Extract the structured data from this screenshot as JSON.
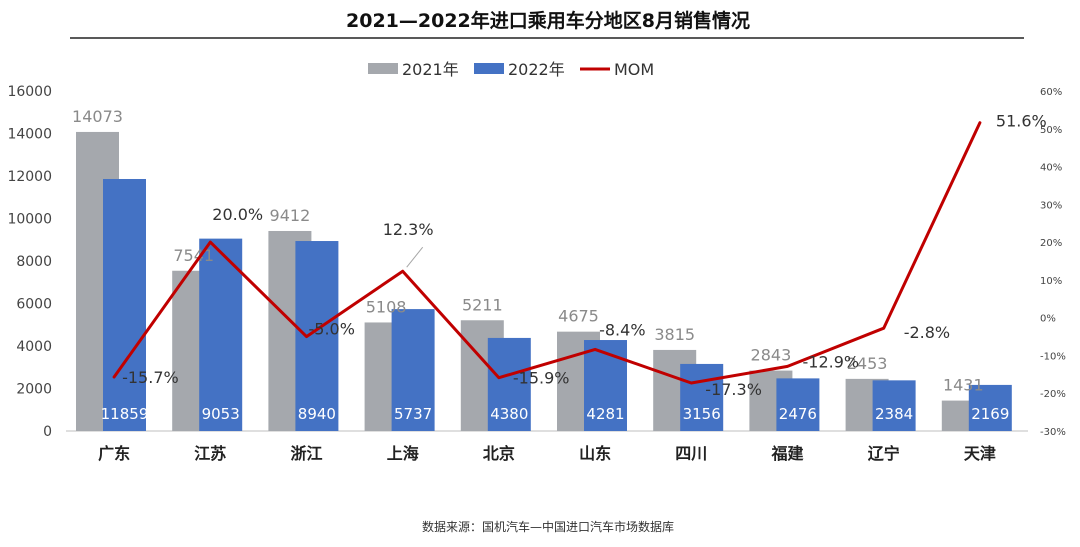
{
  "chart_data": {
    "type": "bar",
    "title": "2021—2022年进口乘用车分地区8月销售情况",
    "categories": [
      "广东",
      "江苏",
      "浙江",
      "上海",
      "北京",
      "山东",
      "四川",
      "福建",
      "辽宁",
      "天津"
    ],
    "series": [
      {
        "name": "2021年",
        "type": "bar",
        "color": "#A5A8AD",
        "values": [
          14073,
          7541,
          9412,
          5108,
          5211,
          4675,
          3815,
          2843,
          2453,
          1431
        ],
        "labels": [
          "14073",
          "7541",
          "9412",
          "5108",
          "5211",
          "4675",
          "3815",
          "2843",
          "2453",
          "1431"
        ]
      },
      {
        "name": "2022年",
        "type": "bar",
        "color": "#4472C4",
        "values": [
          11859,
          9053,
          8940,
          5737,
          4380,
          4281,
          3156,
          2476,
          2384,
          2169
        ],
        "labels": [
          "11859",
          "9053",
          "8940",
          "5737",
          "4380",
          "4281",
          "3156",
          "2476",
          "2384",
          "2169"
        ]
      },
      {
        "name": "MOM",
        "type": "line",
        "axis": "right",
        "color": "#C00000",
        "values": [
          -15.7,
          20.0,
          -5.0,
          12.3,
          -15.9,
          -8.4,
          -17.3,
          -12.9,
          -2.8,
          51.6
        ],
        "labels": [
          "-15.7%",
          "20.0%",
          "-5.0%",
          "12.3%",
          "-15.9%",
          "-8.4%",
          "-17.3%",
          "-12.9%",
          "-2.8%",
          "51.6%"
        ]
      }
    ],
    "y_left": {
      "min": 0,
      "max": 16000,
      "ticks": [
        "0",
        "2000",
        "4000",
        "6000",
        "8000",
        "10000",
        "12000",
        "14000",
        "16000"
      ]
    },
    "y_right": {
      "min": -30,
      "max": 60,
      "ticks": [
        "-30%",
        "-20%",
        "-10%",
        "0%",
        "10%",
        "20%",
        "30%",
        "40%",
        "50%",
        "60%"
      ]
    },
    "grid": false,
    "legend": "top-center"
  },
  "footer": {
    "source": "数据来源：国机汽车—中国进口汽车市场数据库"
  }
}
